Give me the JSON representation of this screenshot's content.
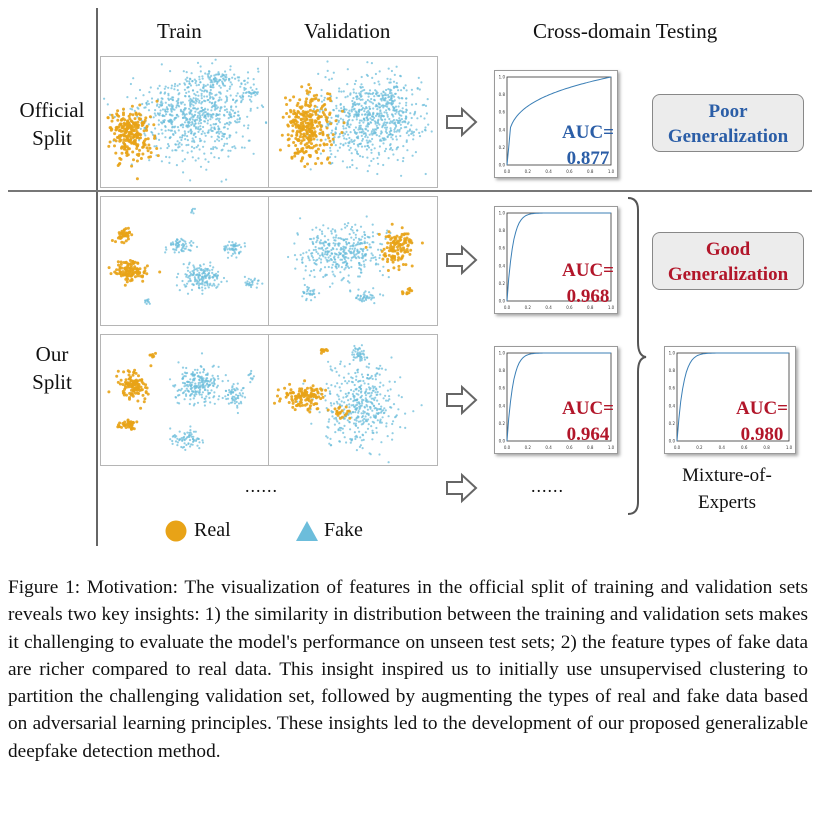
{
  "headers": {
    "train": "Train",
    "validation": "Validation",
    "testing": "Cross-domain Testing"
  },
  "row_labels": {
    "official": [
      "Official",
      "Split"
    ],
    "ours": [
      "Our",
      "Split"
    ]
  },
  "auc": {
    "official": {
      "label": "AUC=",
      "value": "0.877"
    },
    "ours_1": {
      "label": "AUC=",
      "value": "0.968"
    },
    "ours_2": {
      "label": "AUC=",
      "value": "0.964"
    },
    "moe": {
      "label": "AUC=",
      "value": "0.980"
    }
  },
  "boxes": {
    "poor": [
      "Poor",
      "Generalization"
    ],
    "good": [
      "Good",
      "Generalization"
    ]
  },
  "moe_label": [
    "Mixture-of-",
    "Experts"
  ],
  "ellipsis": "......",
  "legend": {
    "real": "Real",
    "fake": "Fake"
  },
  "colors": {
    "real": "#e8a317",
    "fake": "#6cbddb",
    "poor": "#2b5ea7",
    "good": "#b2162a",
    "auc_official": "#2b5ea7",
    "auc_ours": "#b2162a",
    "curve": "#3b7fb6"
  },
  "caption": {
    "figure": "Figure 1:",
    "text": "Motivation: The visualization of features in the official split of training and validation sets reveals two key insights: 1) the similarity in distribution between the training and validation sets makes it challenging to evaluate the model's performance on unseen test sets; 2) the feature types of fake data are richer compared to real data. This insight inspired us to initially use unsupervised clustering to partition the challenging validation set, followed by augmenting the types of real and fake data based on adversarial learning principles. These insights led to the development of our proposed generalizable deepfake detection method."
  },
  "roc_ticks": {
    "x": [
      "0.0",
      "0.2",
      "0.4",
      "0.6",
      "0.8",
      "1.0"
    ],
    "y": [
      "0.0",
      "0.2",
      "0.4",
      "0.6",
      "0.8",
      "1.0"
    ]
  }
}
